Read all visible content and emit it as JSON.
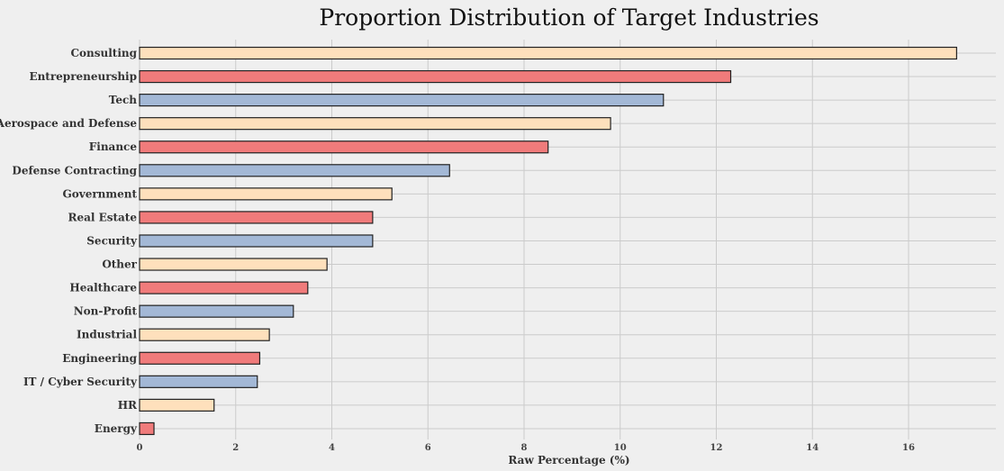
{
  "chart_data": {
    "type": "bar",
    "orientation": "horizontal",
    "title": "Proportion Distribution of Target Industries",
    "xlabel": "Raw Percentage  (%)",
    "ylabel": "",
    "xlim": [
      0,
      17.5
    ],
    "xticks": [
      0,
      2,
      4,
      6,
      8,
      10,
      12,
      14,
      16
    ],
    "grid": true,
    "categories": [
      "Consulting",
      "Entrepreneurship",
      "Tech",
      "Aerospace and Defense",
      "Finance",
      "Defense Contracting",
      "Government",
      "Real Estate",
      "Security",
      "Other",
      "Healthcare",
      "Non-Profit",
      "Industrial",
      "Engineering",
      "IT / Cyber Security",
      "HR",
      "Energy"
    ],
    "values": [
      17.0,
      12.3,
      10.9,
      9.8,
      8.5,
      6.45,
      5.25,
      4.85,
      4.85,
      3.9,
      3.5,
      3.2,
      2.7,
      2.5,
      2.45,
      1.55,
      0.3
    ],
    "bar_colors": [
      "#fee0bc",
      "#f07b7b",
      "#a3b8d6",
      "#fee0bc",
      "#f07b7b",
      "#a3b8d6",
      "#fee0bc",
      "#f07b7b",
      "#a3b8d6",
      "#fee0bc",
      "#f07b7b",
      "#a3b8d6",
      "#fee0bc",
      "#f07b7b",
      "#a3b8d6",
      "#fee0bc",
      "#f07b7b"
    ],
    "background_color": "#efefef",
    "grid_color": "#cbcbcb"
  }
}
